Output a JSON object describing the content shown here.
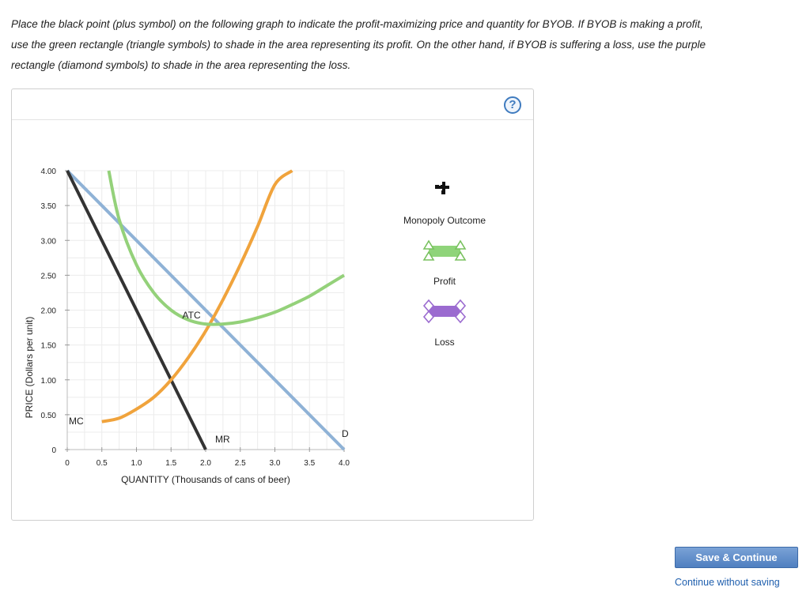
{
  "instructions": {
    "line1": "Place the black point (plus symbol) on the following graph to indicate the profit-maximizing price and quantity for BYOB. If BYOB is making a profit,",
    "line2": "use the green rectangle (triangle symbols) to shade in the area representing its profit. On the other hand, if BYOB is suffering a loss, use the purple",
    "line3": "rectangle (diamond symbols) to shade in the area representing the loss."
  },
  "help_label": "?",
  "tools": {
    "monopoly_label": "Monopoly Outcome",
    "profit_label": "Profit",
    "loss_label": "Loss"
  },
  "buttons": {
    "save_label": "Save & Continue",
    "continue_label": "Continue without saving"
  },
  "colors": {
    "demand": "#8fb2d6",
    "mr": "#333333",
    "mc": "#f0a33c",
    "atc": "#94d17a",
    "profit_fill": "#8fd47a",
    "loss_fill": "#9b6bd0"
  },
  "chart_data": {
    "type": "line",
    "xlabel": "QUANTITY (Thousands of cans of beer)",
    "ylabel": "PRICE (Dollars per unit)",
    "xlim": [
      0,
      4.0
    ],
    "ylim": [
      0,
      4.0
    ],
    "x_ticks": [
      "0",
      "0.5",
      "1.0",
      "1.5",
      "2.0",
      "2.5",
      "3.0",
      "3.5",
      "4.0"
    ],
    "y_ticks": [
      "0",
      "0.50",
      "1.00",
      "1.50",
      "2.00",
      "2.50",
      "3.00",
      "3.50",
      "4.00"
    ],
    "grid": true,
    "series": [
      {
        "name": "D",
        "x": [
          0,
          4.0
        ],
        "y": [
          4.0,
          0
        ]
      },
      {
        "name": "MR",
        "x": [
          0,
          2.0
        ],
        "y": [
          4.0,
          0
        ]
      },
      {
        "name": "MC",
        "x": [
          0.5,
          0.75,
          1.0,
          1.25,
          1.5,
          1.75,
          2.0,
          2.25,
          2.5,
          2.75,
          3.0,
          3.25
        ],
        "y": [
          0.4,
          0.45,
          0.58,
          0.75,
          1.0,
          1.32,
          1.7,
          2.15,
          2.65,
          3.2,
          3.8,
          4.0
        ]
      },
      {
        "name": "ATC",
        "x": [
          0.6,
          0.75,
          1.0,
          1.25,
          1.5,
          1.75,
          2.0,
          2.25,
          2.5,
          2.75,
          3.0,
          3.25,
          3.5,
          3.75,
          4.0
        ],
        "y": [
          4.0,
          3.3,
          2.65,
          2.25,
          2.0,
          1.86,
          1.8,
          1.8,
          1.83,
          1.89,
          1.97,
          2.08,
          2.2,
          2.35,
          2.5
        ]
      }
    ]
  }
}
